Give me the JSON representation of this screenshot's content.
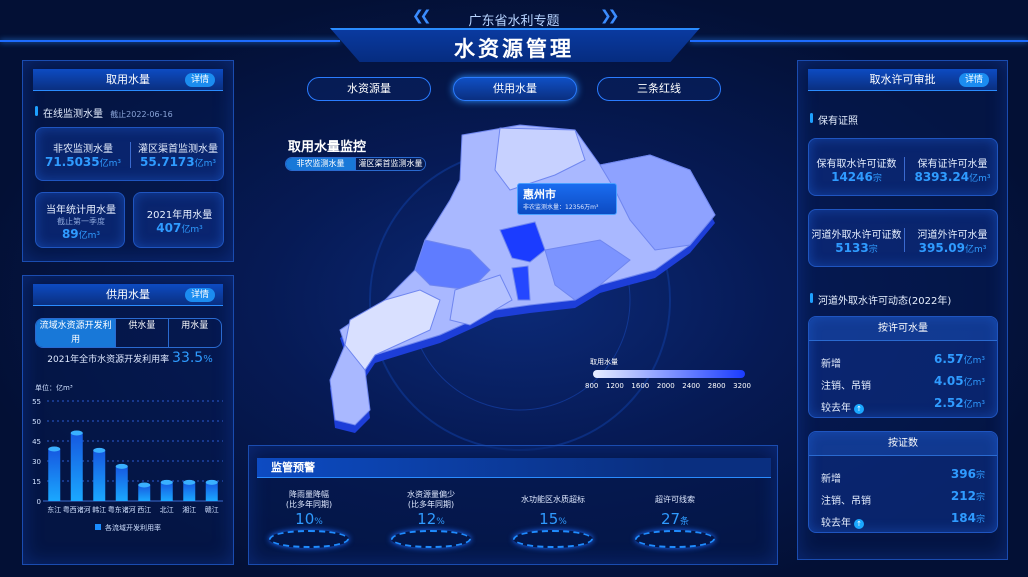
{
  "header": {
    "subtitle": "广东省水利专题",
    "title": "水资源管理"
  },
  "nav": [
    {
      "label": "水资源量",
      "active": false
    },
    {
      "label": "供用水量",
      "active": true
    },
    {
      "label": "三条红线",
      "active": false
    }
  ],
  "left_top": {
    "title": "取用水量",
    "detail": "详情",
    "section": "在线监测水量",
    "date": "截止2022-06-16",
    "cards": [
      {
        "label": "非农监测水量",
        "value": "71.5035",
        "unit": "亿m³"
      },
      {
        "label": "灌区渠首监测水量",
        "value": "55.7173",
        "unit": "亿m³"
      }
    ],
    "year_stat": {
      "label": "当年统计用水量",
      "note": "截止第一季度",
      "value": "89",
      "unit": "亿m³"
    },
    "year2021": {
      "label": "2021年用水量",
      "value": "407",
      "unit": "亿m³"
    }
  },
  "left_bottom": {
    "title": "供用水量",
    "detail": "详情",
    "tabs": [
      "流域水资源开发利用",
      "供水量",
      "用水量"
    ],
    "active_tab": 0,
    "rate_label": "2021年全市水资源开发利用率",
    "rate_value": "33.5",
    "rate_unit": "%"
  },
  "chart_data": {
    "type": "bar",
    "unit_label": "单位：亿m³",
    "categories": [
      "东江",
      "粤西诸河",
      "韩江",
      "粤东诸河",
      "西江",
      "北江",
      "湘江",
      "赣江"
    ],
    "series": [
      {
        "name": "各流域开发利用率",
        "values": [
          39,
          47,
          38,
          26,
          12,
          14,
          14,
          14
        ]
      }
    ],
    "yticks": [
      0,
      15,
      30,
      45,
      50,
      55
    ],
    "ylim": [
      0,
      55
    ],
    "grid": true,
    "legend": "bottom",
    "color": "#1a8cff"
  },
  "map": {
    "title": "取用水量监控",
    "toggle": [
      "非农监测水量",
      "灌区渠首监测水量"
    ],
    "active_toggle": 0,
    "tooltip": {
      "city": "惠州市",
      "label": "非农监测水量：",
      "value": "12356万m³"
    },
    "legend": {
      "title": "取用水量",
      "ticks": [
        "800",
        "1200",
        "1600",
        "2000",
        "2400",
        "2800",
        "3200"
      ],
      "colors": [
        "#e8eeff",
        "#1a3cff"
      ]
    }
  },
  "warning": {
    "title": "监管预警",
    "items": [
      {
        "label1": "降雨量降幅",
        "label2": "(比多年同期)",
        "value": "10",
        "unit": "%"
      },
      {
        "label1": "水资源量偏少",
        "label2": "(比多年同期)",
        "value": "12",
        "unit": "%"
      },
      {
        "label1": "水功能区水质超标",
        "label2": "",
        "value": "15",
        "unit": "%"
      },
      {
        "label1": "超许可线索",
        "label2": "",
        "value": "27",
        "unit": "条"
      }
    ]
  },
  "right": {
    "title": "取水许可审批",
    "detail": "详情",
    "section1": "保有证照",
    "cards": [
      [
        {
          "label": "保有取水许可证数",
          "value": "14246",
          "unit": "宗"
        },
        {
          "label": "保有证许可水量",
          "value": "8393.24",
          "unit": "亿m³"
        }
      ],
      [
        {
          "label": "河道外取水许可证数",
          "value": "5133",
          "unit": "宗"
        },
        {
          "label": "河道外许可水量",
          "value": "395.09",
          "unit": "亿m³"
        }
      ]
    ],
    "section2": "河道外取水许可动态(2022年)",
    "by_volume": {
      "title": "按许可水量",
      "rows": [
        {
          "label": "新增",
          "value": "6.57",
          "unit": "亿m³"
        },
        {
          "label": "注销、吊销",
          "value": "4.05",
          "unit": "亿m³"
        },
        {
          "label": "较去年",
          "value": "2.52",
          "unit": "亿m³",
          "icon": "arrow-up-icon"
        }
      ]
    },
    "by_count": {
      "title": "按证数",
      "rows": [
        {
          "label": "新增",
          "value": "396",
          "unit": "宗"
        },
        {
          "label": "注销、吊销",
          "value": "212",
          "unit": "宗"
        },
        {
          "label": "较去年",
          "value": "184",
          "unit": "宗",
          "icon": "arrow-up-icon"
        }
      ]
    }
  }
}
